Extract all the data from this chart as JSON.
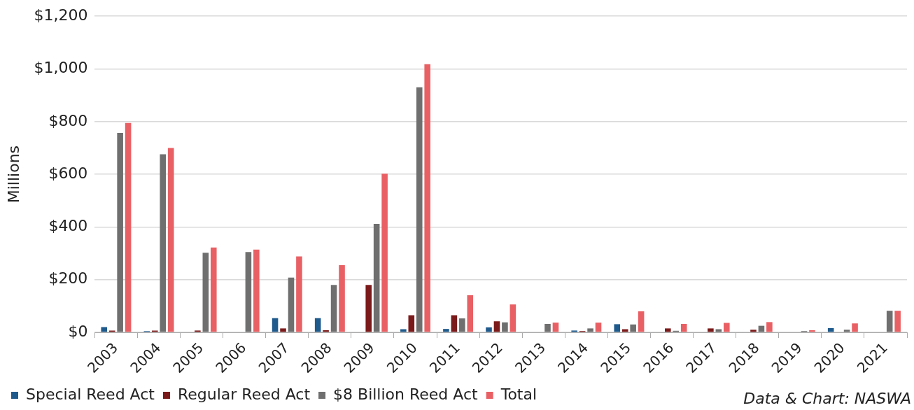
{
  "chart_data": {
    "type": "bar",
    "ylabel": "Millions",
    "categories": [
      "2003",
      "2004",
      "2005",
      "2006",
      "2007",
      "2008",
      "2009",
      "2010",
      "2011",
      "2012",
      "2013",
      "2014",
      "2015",
      "2016",
      "2017",
      "2018",
      "2019",
      "2020",
      "2021"
    ],
    "series": [
      {
        "name": "Special Reed Act",
        "color": "#1f5a8c",
        "values": [
          20,
          5,
          2,
          0,
          54,
          54,
          0,
          12,
          13,
          19,
          0,
          7,
          31,
          0,
          0,
          0,
          0,
          16,
          0
        ]
      },
      {
        "name": "Regular Reed Act",
        "color": "#7b1a1a",
        "values": [
          7,
          7,
          7,
          0,
          15,
          8,
          180,
          65,
          65,
          42,
          0,
          5,
          12,
          15,
          15,
          10,
          0,
          0,
          0
        ]
      },
      {
        "name": "$8 Billion Reed Act",
        "color": "#6f6f6f",
        "values": [
          757,
          676,
          302,
          305,
          208,
          180,
          412,
          930,
          53,
          38,
          32,
          15,
          30,
          6,
          12,
          25,
          5,
          10,
          82
        ]
      },
      {
        "name": "Total",
        "color": "#e96064",
        "values": [
          795,
          700,
          322,
          314,
          288,
          255,
          602,
          1018,
          141,
          106,
          37,
          37,
          80,
          32,
          36,
          39,
          8,
          34,
          82
        ]
      }
    ],
    "ylim": [
      0,
      1200
    ],
    "yticks": [
      {
        "value": 0,
        "label": "$0"
      },
      {
        "value": 200,
        "label": "$200"
      },
      {
        "value": 400,
        "label": "$400"
      },
      {
        "value": 600,
        "label": "$600"
      },
      {
        "value": 800,
        "label": "$800"
      },
      {
        "value": 1000,
        "label": "$1,000"
      },
      {
        "value": 1200,
        "label": "$1,200"
      }
    ],
    "grid": "y",
    "legend": "bottom",
    "annotations": [
      "Data & Chart: NASWA"
    ]
  }
}
